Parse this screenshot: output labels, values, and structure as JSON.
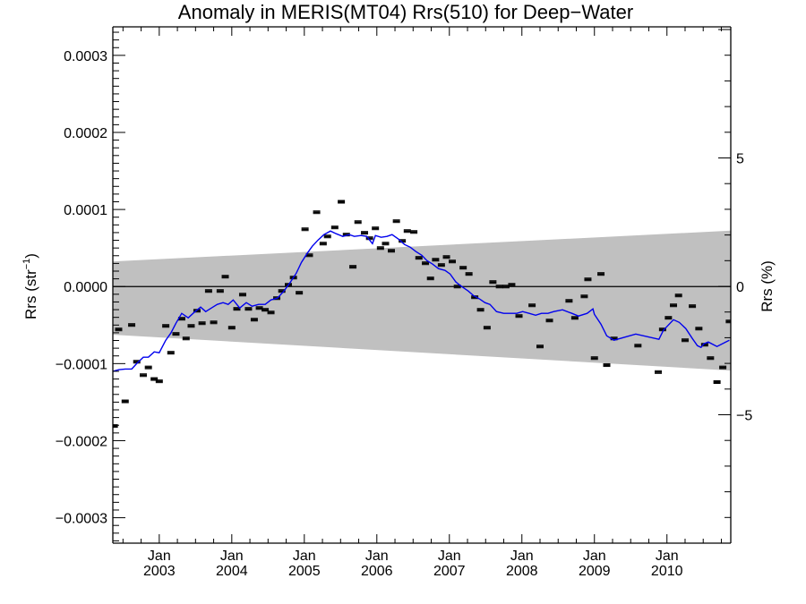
{
  "chart_data": {
    "type": "scatter",
    "title": "Anomaly in MERIS(MT04) Rrs(510) for Deep−Water",
    "xlabel": "",
    "ylabel": "Rrs (str⁻¹)",
    "ylabel_base": "Rrs (str",
    "ylabel_sup": "−1",
    "ylabel_close": ")",
    "y2label": "Rrs (%)",
    "xlim": [
      2002.36,
      2010.88
    ],
    "ylim": [
      -0.000333,
      0.000337
    ],
    "y2lim": [
      -9.0,
      9.0
    ],
    "grid": false,
    "legend": "none",
    "x_ticks": [
      {
        "value": 2003,
        "label_top": "Jan",
        "label_bottom": "2003"
      },
      {
        "value": 2004,
        "label_top": "Jan",
        "label_bottom": "2004"
      },
      {
        "value": 2005,
        "label_top": "Jan",
        "label_bottom": "2005"
      },
      {
        "value": 2006,
        "label_top": "Jan",
        "label_bottom": "2006"
      },
      {
        "value": 2007,
        "label_top": "Jan",
        "label_bottom": "2007"
      },
      {
        "value": 2008,
        "label_top": "Jan",
        "label_bottom": "2008"
      },
      {
        "value": 2009,
        "label_top": "Jan",
        "label_bottom": "2009"
      },
      {
        "value": 2010,
        "label_top": "Jan",
        "label_bottom": "2010"
      }
    ],
    "y_ticks": [
      {
        "value": 0.0003,
        "label": "0.0003"
      },
      {
        "value": 0.0002,
        "label": "0.0002"
      },
      {
        "value": 0.0001,
        "label": "0.0001"
      },
      {
        "value": 0.0,
        "label": "0.0000"
      },
      {
        "value": -0.0001,
        "label": "−0.0001"
      },
      {
        "value": -0.0002,
        "label": "−0.0002"
      },
      {
        "value": -0.0003,
        "label": "−0.0003"
      }
    ],
    "y2_ticks": [
      {
        "value": 5,
        "label": "5"
      },
      {
        "value": 0,
        "label": "0"
      },
      {
        "value": -5,
        "label": "−5"
      }
    ],
    "zero_line": 0.0,
    "uncertainty_band": {
      "color": "#c0c0c0",
      "upper": [
        [
          2002.36,
          3.25e-05
        ],
        [
          2010.88,
          7.25e-05
        ]
      ],
      "lower": [
        [
          2002.36,
          -6.25e-05
        ],
        [
          2010.88,
          -0.000109
        ]
      ]
    },
    "series": [
      {
        "name": "monthly anomaly",
        "type": "scatter",
        "marker": "errorbar-dash",
        "color": "#000000",
        "x": [
          2002.38,
          2002.44,
          2002.53,
          2002.62,
          2002.69,
          2002.78,
          2002.85,
          2002.93,
          2003.0,
          2003.09,
          2003.16,
          2003.23,
          2003.31,
          2003.37,
          2003.44,
          2003.52,
          2003.59,
          2003.68,
          2003.75,
          2003.84,
          2003.91,
          2004.0,
          2004.07,
          2004.15,
          2004.23,
          2004.31,
          2004.38,
          2004.46,
          2004.54,
          2004.62,
          2004.69,
          2004.78,
          2004.85,
          2004.93,
          2005.01,
          2005.07,
          2005.17,
          2005.26,
          2005.32,
          2005.42,
          2005.51,
          2005.58,
          2005.67,
          2005.74,
          2005.83,
          2005.9,
          2005.98,
          2006.05,
          2006.12,
          2006.2,
          2006.27,
          2006.35,
          2006.42,
          2006.51,
          2006.58,
          2006.67,
          2006.74,
          2006.81,
          2006.89,
          2006.96,
          2007.04,
          2007.11,
          2007.19,
          2007.27,
          2007.35,
          2007.43,
          2007.52,
          2007.6,
          2007.69,
          2007.78,
          2007.86,
          2007.96,
          2008.14,
          2008.25,
          2008.38,
          2008.65,
          2008.73,
          2008.86,
          2008.91,
          2009.0,
          2009.09,
          2009.17,
          2009.27,
          2009.6,
          2009.88,
          2009.94,
          2010.02,
          2010.09,
          2010.16,
          2010.25,
          2010.35,
          2010.44,
          2010.52,
          2010.6,
          2010.69,
          2010.77,
          2010.86
        ],
        "y": [
          -0.000181,
          -5.57e-05,
          -0.000149,
          -4.99e-05,
          -9.76e-05,
          -0.000115,
          -0.000105,
          -0.00012,
          -0.000123,
          -5.11e-05,
          -8.59e-05,
          -6.15e-05,
          -4.18e-05,
          -6.74e-05,
          -5.11e-05,
          -3.14e-05,
          -4.76e-05,
          -5.8e-06,
          -4.65e-05,
          -5.8e-06,
          1.28e-05,
          -5.34e-05,
          -2.9e-05,
          -1.05e-05,
          -2.9e-05,
          -4.3e-05,
          -2.79e-05,
          -3.02e-05,
          -3.37e-05,
          -1.51e-05,
          -5.8e-06,
          2.3e-06,
          1.16e-05,
          -8.1e-06,
          7.43e-05,
          4.06e-05,
          9.64e-05,
          5.57e-05,
          6.5e-05,
          7.67e-05,
          0.00011,
          6.74e-05,
          2.56e-05,
          8.36e-05,
          6.97e-05,
          6.27e-05,
          7.55e-05,
          4.99e-05,
          5.57e-05,
          4.64e-05,
          8.48e-05,
          5.92e-05,
          7.2e-05,
          7.08e-05,
          3.72e-05,
          3.02e-05,
          1.05e-05,
          3.48e-05,
          2.79e-05,
          3.83e-05,
          3.25e-05,
          0.0,
          2.44e-05,
          1.63e-05,
          -1.39e-05,
          -3.02e-05,
          -5.34e-05,
          5.8e-06,
          0.0,
          0.0,
          2.3e-06,
          -3.83e-05,
          -2.44e-05,
          -7.78e-05,
          -4.41e-05,
          -1.86e-05,
          -4.07e-05,
          -1.28e-05,
          9.3e-06,
          -9.29e-05,
          1.63e-05,
          -0.000102,
          -6.74e-05,
          -7.67e-05,
          -0.000111,
          -5.57e-05,
          -4.06e-05,
          -2.44e-05,
          -1.16e-05,
          -6.97e-05,
          -2.55e-05,
          -5.46e-05,
          -7.55e-05,
          -9.29e-05,
          -0.000124,
          -0.000105,
          -4.53e-05
        ]
      },
      {
        "name": "running mean",
        "type": "line",
        "color": "#0000ee",
        "x": [
          2002.36,
          2002.44,
          2002.53,
          2002.62,
          2002.69,
          2002.78,
          2002.85,
          2002.93,
          2003.0,
          2003.09,
          2003.16,
          2003.23,
          2003.31,
          2003.4,
          2003.48,
          2003.57,
          2003.64,
          2003.72,
          2003.8,
          2003.88,
          2003.95,
          2004.02,
          2004.11,
          2004.2,
          2004.28,
          2004.37,
          2004.46,
          2004.54,
          2004.63,
          2004.72,
          2004.8,
          2004.89,
          2004.96,
          2005.04,
          2005.11,
          2005.19,
          2005.27,
          2005.36,
          2005.44,
          2005.53,
          2005.62,
          2005.69,
          2005.78,
          2005.86,
          2005.94,
          2005.98,
          2006.06,
          2006.14,
          2006.21,
          2006.3,
          2006.38,
          2006.46,
          2006.54,
          2006.62,
          2006.69,
          2006.77,
          2006.85,
          2006.94,
          2007.01,
          2007.09,
          2007.17,
          2007.26,
          2007.33,
          2007.42,
          2007.49,
          2007.56,
          2007.65,
          2007.75,
          2007.84,
          2007.93,
          2008.01,
          2008.1,
          2008.19,
          2008.27,
          2008.36,
          2008.44,
          2008.56,
          2008.69,
          2008.78,
          2008.9,
          2008.98,
          2009.0,
          2009.09,
          2009.17,
          2009.27,
          2009.57,
          2009.89,
          2009.95,
          2010.09,
          2010.17,
          2010.26,
          2010.35,
          2010.42,
          2010.47,
          2010.51,
          2010.57,
          2010.69,
          2010.86
        ],
        "y": [
          -0.00011,
          -0.000108,
          -0.000107,
          -0.000107,
          -0.0001,
          -9.17e-05,
          -9.17e-05,
          -8.47e-05,
          -8.59e-05,
          -6.97e-05,
          -6.04e-05,
          -4.76e-05,
          -3.48e-05,
          -4.06e-05,
          -3.37e-05,
          -2.67e-05,
          -3.25e-05,
          -2.79e-05,
          -2.32e-05,
          -2.09e-05,
          -2.32e-05,
          -1.74e-05,
          -2.79e-05,
          -2.09e-05,
          -2.55e-05,
          -2.32e-05,
          -2.32e-05,
          -1.74e-05,
          -1.51e-05,
          -5.8e-06,
          4.6e-06,
          1.74e-05,
          3.14e-05,
          4.3e-05,
          5.23e-05,
          6.04e-05,
          6.74e-05,
          7.2e-05,
          6.85e-05,
          6.5e-05,
          6.74e-05,
          6.5e-05,
          6.62e-05,
          6.5e-05,
          5.57e-05,
          6.62e-05,
          6.39e-05,
          6.5e-05,
          6.74e-05,
          6.15e-05,
          5.46e-05,
          5.11e-05,
          4.53e-05,
          4.06e-05,
          3.37e-05,
          2.9e-05,
          2.32e-05,
          2.09e-05,
          1.63e-05,
          5.8e-06,
          0.0,
          -5.8e-06,
          -1.16e-05,
          -1.63e-05,
          -2.09e-05,
          -2.32e-05,
          -3.25e-05,
          -3.48e-05,
          -3.48e-05,
          -3.48e-05,
          -3.25e-05,
          -3.48e-05,
          -3.72e-05,
          -3.48e-05,
          -3.48e-05,
          -3.25e-05,
          -3.02e-05,
          -3.48e-05,
          -3.83e-05,
          -3.48e-05,
          -2.9e-05,
          -3.6e-05,
          -4.88e-05,
          -6.39e-05,
          -6.97e-05,
          -6.16e-05,
          -6.85e-05,
          -5.69e-05,
          -4.3e-05,
          -4.65e-05,
          -5.46e-05,
          -6.74e-05,
          -7.67e-05,
          -7.9e-05,
          -7.43e-05,
          -7.2e-05,
          -7.78e-05,
          -6.97e-05
        ]
      }
    ]
  }
}
